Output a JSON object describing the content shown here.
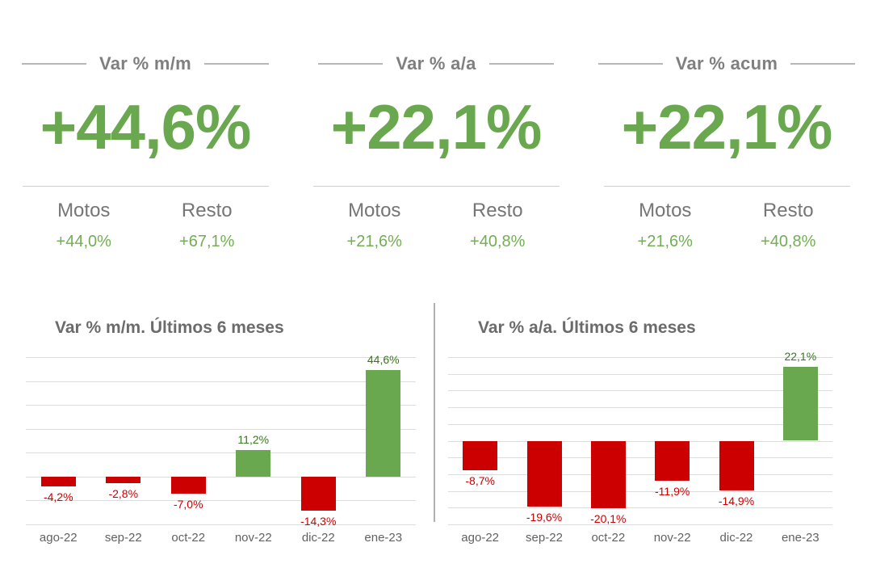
{
  "colors": {
    "kpi_green": "#6aa84f",
    "sub_green": "#74ad55",
    "bar_green": "#6aa84f",
    "bar_red": "#cc0000",
    "label_dark_green": "#38761d",
    "label_red": "#cc0000",
    "title_gray": "#7f7f7f",
    "chart_title_gray": "#6b6b6b"
  },
  "kpis": [
    {
      "title": "Var % m/m",
      "value": "+44,6%",
      "breakdown": [
        {
          "label": "Motos",
          "value": "+44,0%"
        },
        {
          "label": "Resto",
          "value": "+67,1%"
        }
      ]
    },
    {
      "title": "Var % a/a",
      "value": "+22,1%",
      "breakdown": [
        {
          "label": "Motos",
          "value": "+21,6%"
        },
        {
          "label": "Resto",
          "value": "+40,8%"
        }
      ]
    },
    {
      "title": "Var % acum",
      "value": "+22,1%",
      "breakdown": [
        {
          "label": "Motos",
          "value": "+21,6%"
        },
        {
          "label": "Resto",
          "value": "+40,8%"
        }
      ]
    }
  ],
  "chart_data": [
    {
      "type": "bar",
      "title": "Var % m/m. Últimos 6 meses",
      "categories": [
        "ago-22",
        "sep-22",
        "oct-22",
        "nov-22",
        "dic-22",
        "ene-23"
      ],
      "values": [
        -4.2,
        -2.8,
        -7.0,
        11.2,
        -14.3,
        44.6
      ],
      "value_labels": [
        "-4,2%",
        "-2,8%",
        "-7,0%",
        "11,2%",
        "-14,3%",
        "44,6%"
      ],
      "ylim": [
        -20,
        50
      ],
      "grid_step": 10,
      "grid": true,
      "legend": false,
      "xlabel": "",
      "ylabel": "",
      "positive_color": "#6aa84f",
      "negative_color": "#cc0000",
      "positive_label_color": "#38761d",
      "negative_label_color": "#cc0000"
    },
    {
      "type": "bar",
      "title": "Var % a/a. Últimos 6 meses",
      "categories": [
        "ago-22",
        "sep-22",
        "oct-22",
        "nov-22",
        "dic-22",
        "ene-23"
      ],
      "values": [
        -8.7,
        -19.6,
        -20.1,
        -11.9,
        -14.9,
        22.1
      ],
      "value_labels": [
        "-8,7%",
        "-19,6%",
        "-20,1%",
        "-11,9%",
        "-14,9%",
        "22,1%"
      ],
      "ylim": [
        -25,
        25
      ],
      "grid_step": 5,
      "grid": true,
      "legend": false,
      "xlabel": "",
      "ylabel": "",
      "positive_color": "#6aa84f",
      "negative_color": "#cc0000",
      "positive_label_color": "#38761d",
      "negative_label_color": "#cc0000"
    }
  ]
}
